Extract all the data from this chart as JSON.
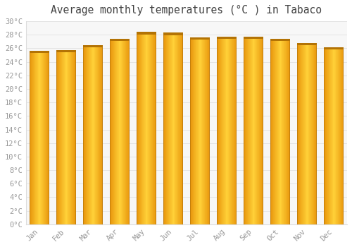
{
  "title": "Average monthly temperatures (°C ) in Tabaco",
  "months": [
    "Jan",
    "Feb",
    "Mar",
    "Apr",
    "May",
    "Jun",
    "Jul",
    "Aug",
    "Sep",
    "Oct",
    "Nov",
    "Dec"
  ],
  "temperatures": [
    25.6,
    25.7,
    26.5,
    27.4,
    28.4,
    28.3,
    27.6,
    27.7,
    27.7,
    27.4,
    26.8,
    26.1
  ],
  "bar_color_left": "#E8960A",
  "bar_color_center": "#FFCC33",
  "bar_color_right": "#E8960A",
  "bar_edge_color": "#B87800",
  "ylim": [
    0,
    30
  ],
  "ytick_step": 2,
  "background_color": "#FFFFFF",
  "plot_bg_color": "#F7F7F7",
  "grid_color": "#DDDDDD",
  "title_fontsize": 10.5,
  "tick_fontsize": 7.5,
  "tick_label_color": "#999999",
  "font_family": "monospace"
}
